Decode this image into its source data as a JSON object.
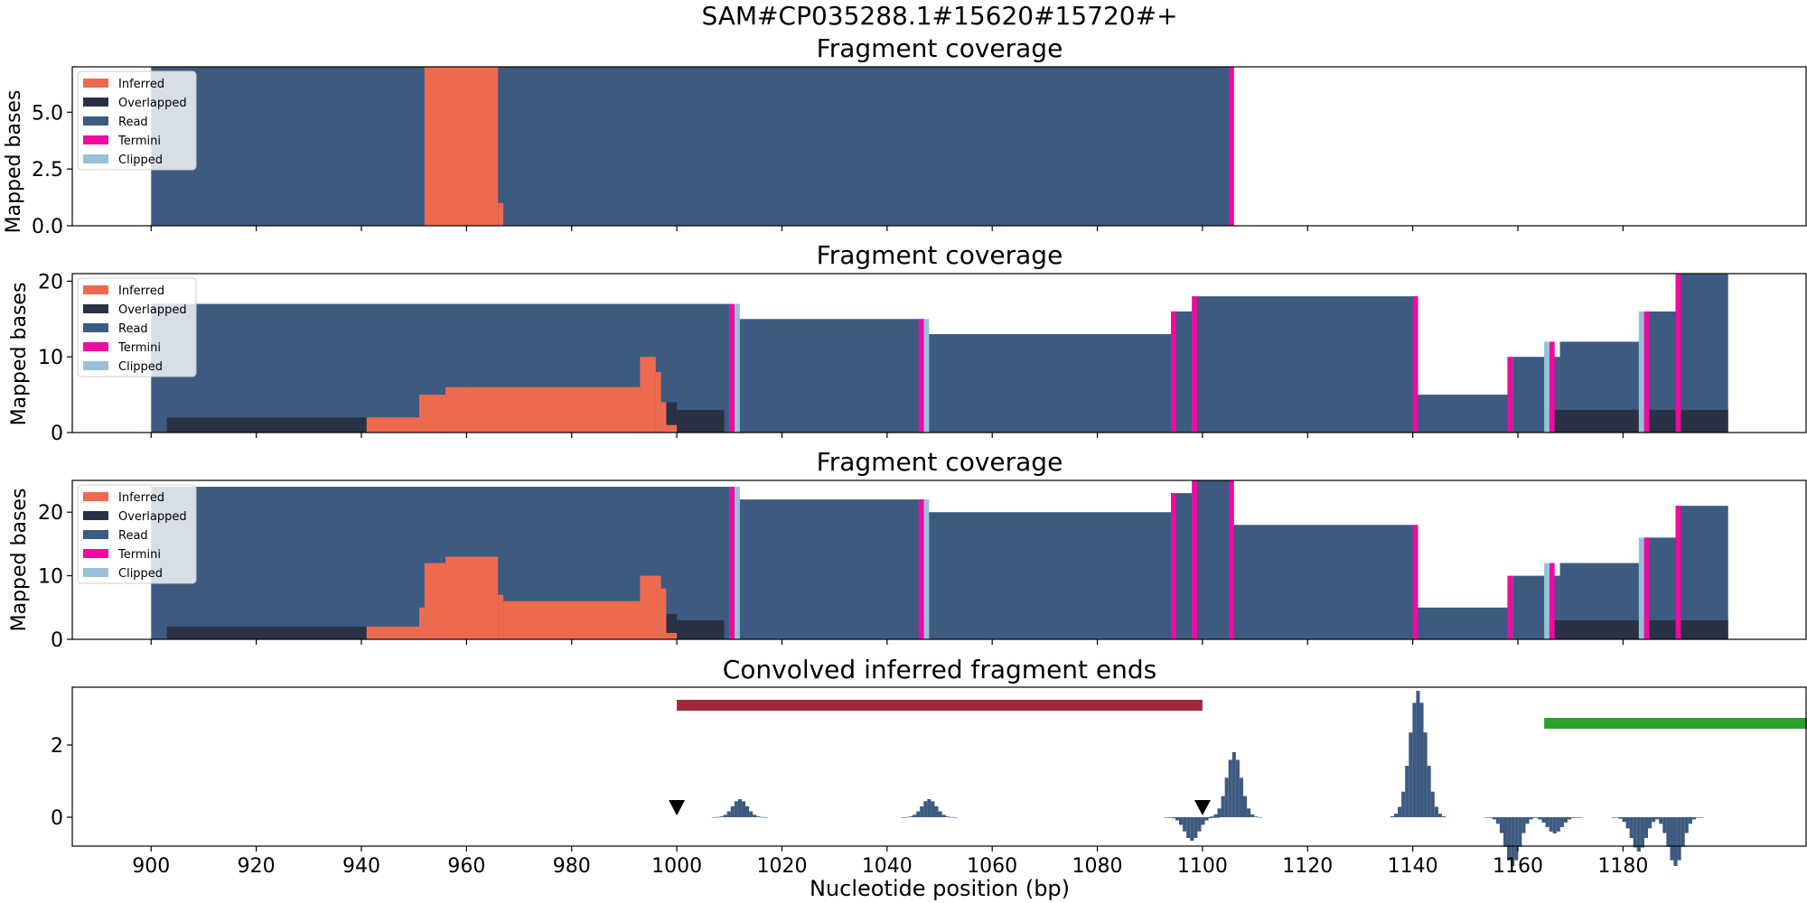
{
  "figure": {
    "suptitle": "SAM#CP035288.1#15620#15720#+",
    "xlabel": "Nucleotide position (bp)"
  },
  "colors": {
    "inferred": "#ee6a4f",
    "overlapped": "#283244",
    "read": "#3d5a80",
    "termini": "#ef0aa0",
    "clipped": "#98c1d9",
    "marker": "#000000",
    "red_bar": "#9e2a3a",
    "green_bar": "#2ca02c"
  },
  "legend_labels": [
    "Inferred",
    "Overlapped",
    "Read",
    "Termini",
    "Clipped"
  ],
  "chart_data": [
    {
      "type": "area",
      "title": "Fragment coverage",
      "ylabel": "Mapped bases",
      "xlim": [
        885,
        1215
      ],
      "ylim": [
        0,
        7
      ],
      "yticks": [
        0.0,
        2.5,
        5.0
      ],
      "ytick_labels": [
        "0.0",
        "2.5",
        "5.0"
      ],
      "legend": "upper-left",
      "series": [
        {
          "name": "Read",
          "key": "read",
          "steps": [
            [
              900,
              1105,
              7
            ]
          ]
        },
        {
          "name": "Inferred",
          "key": "inferred",
          "steps": [
            [
              952,
              966,
              7
            ],
            [
              966,
              967,
              1
            ]
          ]
        },
        {
          "name": "Termini",
          "key": "termini",
          "steps": [
            [
              1105,
              1106,
              7
            ]
          ]
        }
      ]
    },
    {
      "type": "area",
      "title": "Fragment coverage",
      "ylabel": "Mapped bases",
      "xlim": [
        885,
        1215
      ],
      "ylim": [
        0,
        21
      ],
      "yticks": [
        0,
        10,
        20
      ],
      "ytick_labels": [
        "0",
        "10",
        "20"
      ],
      "legend": "upper-left",
      "series": [
        {
          "name": "Read",
          "key": "read",
          "steps": [
            [
              900,
              1010,
              17
            ],
            [
              1010,
              1011,
              17
            ],
            [
              1011,
              1047,
              15
            ],
            [
              1047,
              1094,
              13
            ],
            [
              1094,
              1098,
              16
            ],
            [
              1098,
              1141,
              18
            ],
            [
              1141,
              1159,
              5
            ],
            [
              1159,
              1168,
              10
            ],
            [
              1168,
              1184,
              12
            ],
            [
              1184,
              1190,
              16
            ],
            [
              1190,
              1200,
              21
            ]
          ]
        },
        {
          "name": "Overlapped",
          "key": "overlapped",
          "steps": [
            [
              903,
              941,
              2
            ],
            [
              998,
              1000,
              4
            ],
            [
              1000,
              1009,
              3
            ],
            [
              1165,
              1200,
              3
            ]
          ]
        },
        {
          "name": "Inferred",
          "key": "inferred",
          "steps": [
            [
              941,
              951,
              2
            ],
            [
              951,
              956,
              5
            ],
            [
              956,
              960,
              6
            ],
            [
              960,
              993,
              6
            ],
            [
              993,
              996,
              10
            ],
            [
              996,
              997,
              8
            ],
            [
              997,
              998,
              4
            ],
            [
              998,
              1000,
              1
            ]
          ]
        },
        {
          "name": "Termini",
          "key": "termini",
          "steps": [
            [
              1010,
              1011,
              17
            ],
            [
              1046,
              1047,
              15
            ],
            [
              1094,
              1095,
              16
            ],
            [
              1098,
              1099,
              18
            ],
            [
              1140,
              1141,
              18
            ],
            [
              1158,
              1159,
              10
            ],
            [
              1166,
              1167,
              12
            ],
            [
              1184,
              1185,
              16
            ],
            [
              1190,
              1191,
              21
            ]
          ]
        },
        {
          "name": "Clipped",
          "key": "clipped",
          "steps": [
            [
              1011,
              1012,
              17
            ],
            [
              1047,
              1048,
              15
            ],
            [
              1165,
              1166,
              12
            ],
            [
              1183,
              1184,
              16
            ]
          ]
        }
      ]
    },
    {
      "type": "area",
      "title": "Fragment coverage",
      "ylabel": "Mapped bases",
      "xlim": [
        885,
        1215
      ],
      "ylim": [
        0,
        25
      ],
      "yticks": [
        0,
        10,
        20
      ],
      "ytick_labels": [
        "0",
        "10",
        "20"
      ],
      "legend": "upper-left",
      "series": [
        {
          "name": "Read",
          "key": "read",
          "steps": [
            [
              900,
              1010,
              24
            ],
            [
              1010,
              1011,
              24
            ],
            [
              1011,
              1047,
              22
            ],
            [
              1047,
              1094,
              20
            ],
            [
              1094,
              1098,
              23
            ],
            [
              1098,
              1105,
              25
            ],
            [
              1105,
              1141,
              18
            ],
            [
              1141,
              1159,
              5
            ],
            [
              1159,
              1168,
              10
            ],
            [
              1168,
              1184,
              12
            ],
            [
              1184,
              1190,
              16
            ],
            [
              1190,
              1200,
              21
            ]
          ]
        },
        {
          "name": "Overlapped",
          "key": "overlapped",
          "steps": [
            [
              903,
              941,
              2
            ],
            [
              998,
              1000,
              4
            ],
            [
              1000,
              1009,
              3
            ],
            [
              1165,
              1200,
              3
            ]
          ]
        },
        {
          "name": "Inferred",
          "key": "inferred",
          "steps": [
            [
              941,
              951,
              2
            ],
            [
              951,
              952,
              5
            ],
            [
              952,
              956,
              12
            ],
            [
              956,
              966,
              13
            ],
            [
              966,
              967,
              7
            ],
            [
              967,
              993,
              6
            ],
            [
              993,
              997,
              10
            ],
            [
              997,
              998,
              8
            ],
            [
              998,
              1000,
              1
            ]
          ]
        },
        {
          "name": "Termini",
          "key": "termini",
          "steps": [
            [
              1010,
              1011,
              24
            ],
            [
              1046,
              1047,
              22
            ],
            [
              1094,
              1095,
              23
            ],
            [
              1098,
              1099,
              25
            ],
            [
              1105,
              1106,
              25
            ],
            [
              1140,
              1141,
              18
            ],
            [
              1158,
              1159,
              10
            ],
            [
              1166,
              1167,
              12
            ],
            [
              1184,
              1185,
              16
            ],
            [
              1190,
              1191,
              21
            ]
          ]
        },
        {
          "name": "Clipped",
          "key": "clipped",
          "steps": [
            [
              1011,
              1012,
              24
            ],
            [
              1047,
              1048,
              22
            ],
            [
              1165,
              1166,
              12
            ],
            [
              1183,
              1184,
              16
            ]
          ]
        }
      ]
    },
    {
      "type": "bar",
      "title": "Convolved inferred fragment ends",
      "xlim": [
        885,
        1215
      ],
      "ylim": [
        -0.8,
        3.6
      ],
      "yticks": [
        0,
        2
      ],
      "ytick_labels": [
        "0",
        "2"
      ],
      "xticks": [
        900,
        920,
        940,
        960,
        980,
        1000,
        1020,
        1040,
        1060,
        1080,
        1100,
        1120,
        1140,
        1160,
        1180
      ],
      "xtick_labels": [
        "900",
        "920",
        "940",
        "960",
        "980",
        "1000",
        "1020",
        "1040",
        "1060",
        "1080",
        "1100",
        "1120",
        "1140",
        "1160",
        "1180"
      ],
      "series": [
        {
          "center": 1012,
          "peak": 0.5,
          "width": 4
        },
        {
          "center": 1048,
          "peak": 0.5,
          "width": 4
        },
        {
          "center": 1098,
          "peak": -0.65,
          "width": 4
        },
        {
          "center": 1106,
          "peak": 1.8,
          "width": 4
        },
        {
          "center": 1141,
          "peak": 3.5,
          "width": 5
        },
        {
          "center": 1159,
          "peak": -1.35,
          "width": 4
        },
        {
          "center": 1167,
          "peak": -0.45,
          "width": 4
        },
        {
          "center": 1183,
          "peak": -0.95,
          "width": 4
        },
        {
          "center": 1190,
          "peak": -1.35,
          "width": 4
        }
      ],
      "markers": [
        {
          "x": 1000,
          "y": 0.1
        },
        {
          "x": 1100,
          "y": 0.1
        }
      ],
      "ranges": [
        {
          "key": "red_bar",
          "x0": 1000,
          "x1": 1100,
          "y": 3.1
        },
        {
          "key": "green_bar",
          "x0": 1165,
          "x1": 1215,
          "y": 2.6
        }
      ]
    }
  ]
}
